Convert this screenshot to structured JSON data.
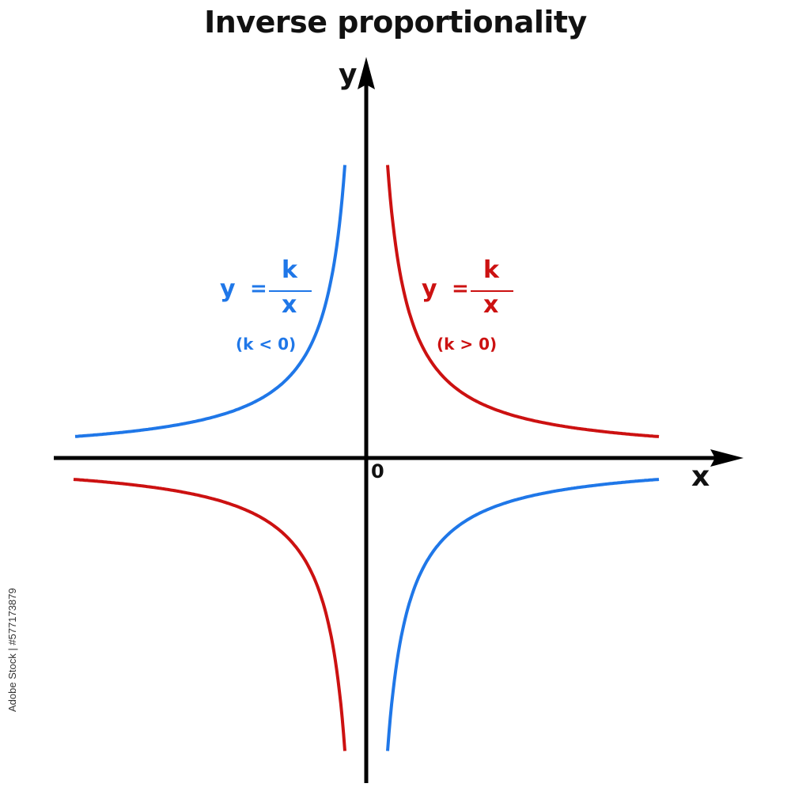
{
  "title": "Inverse proportionality",
  "axes": {
    "x_label": "x",
    "y_label": "y",
    "origin_label": "0"
  },
  "colors": {
    "axis": "#000000",
    "negative_k": "#1f77e8",
    "positive_k": "#cc1111"
  },
  "formulas": {
    "negative": {
      "y": "y",
      "equals": "=",
      "numerator": "k",
      "denominator": "x",
      "condition": "(k < 0)"
    },
    "positive": {
      "y": "y",
      "equals": "=",
      "numerator": "k",
      "denominator": "x",
      "condition": "(k > 0)"
    }
  },
  "watermark": {
    "stock_id": "Adobe Stock | #577173879"
  }
}
